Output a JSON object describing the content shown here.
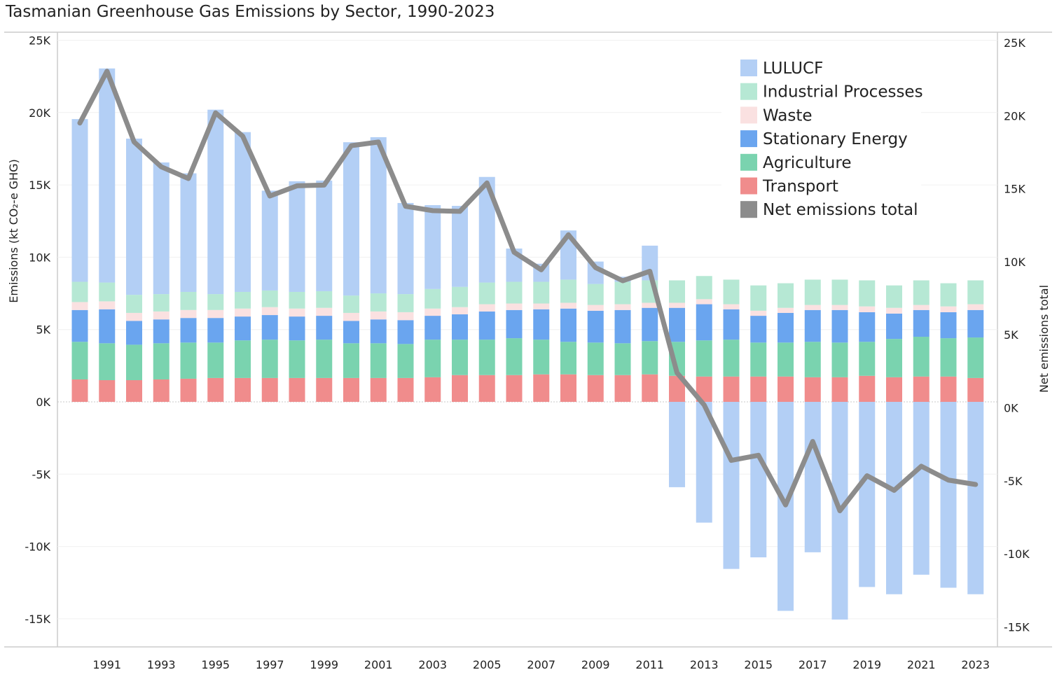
{
  "chart_data": {
    "type": "bar",
    "title": "Tasmanian Greenhouse Gas Emissions by Sector, 1990-2023",
    "ylabel": "Emissions (kt CO₂-e GHG)",
    "y2label": "Net emissions total",
    "ylim": [
      -17000,
      25000
    ],
    "y_ticks": [
      25000,
      20000,
      15000,
      10000,
      5000,
      0,
      -5000,
      -10000,
      -15000
    ],
    "y_tick_labels": [
      "25K",
      "20K",
      "15K",
      "10K",
      "5K",
      "0K",
      "-5K",
      "-10K",
      "-15K"
    ],
    "y2_ticks": [
      25000,
      20000,
      15000,
      10000,
      5000,
      0,
      -5000,
      -10000,
      -15000
    ],
    "y2_tick_labels": [
      "25K",
      "20K",
      "15K",
      "10K",
      "5K",
      "0K",
      "-5K",
      "-10K",
      "-15K"
    ],
    "x": [
      1990,
      1991,
      1992,
      1993,
      1994,
      1995,
      1996,
      1997,
      1998,
      1999,
      2000,
      2001,
      2002,
      2003,
      2004,
      2005,
      2006,
      2007,
      2008,
      2009,
      2010,
      2011,
      2012,
      2013,
      2014,
      2015,
      2016,
      2017,
      2018,
      2019,
      2020,
      2021,
      2022,
      2023
    ],
    "x_tick_labels": [
      "1991",
      "1993",
      "1995",
      "1997",
      "1999",
      "2001",
      "2003",
      "2005",
      "2007",
      "2009",
      "2011",
      "2013",
      "2015",
      "2017",
      "2019",
      "2021",
      "2023"
    ],
    "legend_position": "top-right",
    "grid": true,
    "series": [
      {
        "name": "Transport",
        "color": "#f08c8c",
        "values": [
          1550,
          1500,
          1500,
          1550,
          1600,
          1650,
          1650,
          1650,
          1650,
          1650,
          1650,
          1650,
          1650,
          1700,
          1850,
          1850,
          1850,
          1900,
          1900,
          1850,
          1850,
          1900,
          1800,
          1750,
          1750,
          1750,
          1750,
          1700,
          1700,
          1800,
          1700,
          1750,
          1750,
          1650
        ]
      },
      {
        "name": "Agriculture",
        "color": "#7ad3af",
        "values": [
          2600,
          2550,
          2450,
          2500,
          2500,
          2450,
          2600,
          2650,
          2600,
          2650,
          2400,
          2400,
          2350,
          2600,
          2450,
          2450,
          2550,
          2400,
          2250,
          2250,
          2200,
          2300,
          2350,
          2500,
          2550,
          2350,
          2350,
          2450,
          2400,
          2350,
          2650,
          2750,
          2650,
          2800
        ]
      },
      {
        "name": "Stationary Energy",
        "color": "#6aa5ef",
        "values": [
          2200,
          2350,
          1650,
          1650,
          1700,
          1700,
          1650,
          1700,
          1650,
          1650,
          1550,
          1650,
          1650,
          1650,
          1750,
          1950,
          1950,
          2100,
          2300,
          2200,
          2300,
          2300,
          2350,
          2500,
          2100,
          1850,
          2050,
          2200,
          2250,
          2050,
          1750,
          1850,
          1800,
          1900
        ]
      },
      {
        "name": "Waste",
        "color": "#fae1e1",
        "values": [
          550,
          550,
          550,
          550,
          550,
          550,
          550,
          550,
          550,
          550,
          550,
          550,
          550,
          500,
          500,
          500,
          450,
          400,
          400,
          400,
          400,
          350,
          350,
          350,
          350,
          350,
          350,
          350,
          350,
          400,
          400,
          350,
          400,
          400
        ]
      },
      {
        "name": "Industrial Processes",
        "color": "#b6e8d4",
        "values": [
          1400,
          1300,
          1250,
          1200,
          1250,
          1100,
          1150,
          1150,
          1150,
          1150,
          1200,
          1250,
          1250,
          1350,
          1400,
          1500,
          1500,
          1500,
          1600,
          1450,
          1550,
          1550,
          1550,
          1600,
          1700,
          1750,
          1700,
          1750,
          1750,
          1800,
          1550,
          1700,
          1600,
          1650
        ]
      },
      {
        "name": "LULUCF",
        "color": "#b3cff5",
        "values": [
          11250,
          14800,
          10800,
          9100,
          8200,
          12750,
          11050,
          6900,
          7650,
          7650,
          10600,
          10800,
          6300,
          5800,
          5600,
          7300,
          2300,
          1250,
          3400,
          1550,
          350,
          2400,
          -5900,
          -8350,
          -11550,
          -10750,
          -14450,
          -10400,
          -15050,
          -12800,
          -13300,
          -11950,
          -12850,
          -13300
        ]
      },
      {
        "name": "Net emissions total",
        "type": "line",
        "color": "#8c8c8c",
        "values": [
          19500,
          23050,
          18200,
          16500,
          15700,
          20200,
          18600,
          14500,
          15200,
          15250,
          17950,
          18200,
          13800,
          13500,
          13450,
          15400,
          10650,
          9450,
          11850,
          9600,
          8700,
          9350,
          2400,
          200,
          -3600,
          -3250,
          -6650,
          -2300,
          -7050,
          -4650,
          -5650,
          -4000,
          -4950,
          -5250
        ]
      }
    ]
  }
}
